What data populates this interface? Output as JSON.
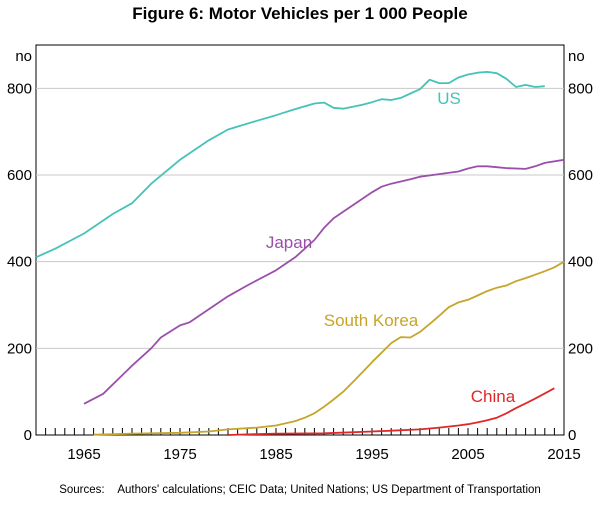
{
  "chart_data": {
    "type": "line",
    "title": "Figure 6: Motor Vehicles per 1 000 People",
    "ylabel_left": "no",
    "ylabel_right": "no",
    "xlim": [
      1960,
      2015
    ],
    "ylim": [
      0,
      900
    ],
    "xticks": [
      1965,
      1975,
      1985,
      1995,
      2005,
      2015
    ],
    "yticks": [
      0,
      200,
      400,
      600,
      800
    ],
    "series": [
      {
        "name": "US",
        "color": "#45c3b8",
        "points": [
          [
            1960,
            410
          ],
          [
            1962,
            430
          ],
          [
            1965,
            465
          ],
          [
            1968,
            510
          ],
          [
            1970,
            535
          ],
          [
            1972,
            580
          ],
          [
            1975,
            635
          ],
          [
            1978,
            680
          ],
          [
            1980,
            705
          ],
          [
            1983,
            725
          ],
          [
            1985,
            738
          ],
          [
            1987,
            752
          ],
          [
            1989,
            765
          ],
          [
            1990,
            767
          ],
          [
            1991,
            755
          ],
          [
            1992,
            753
          ],
          [
            1994,
            762
          ],
          [
            1995,
            768
          ],
          [
            1996,
            775
          ],
          [
            1997,
            773
          ],
          [
            1998,
            778
          ],
          [
            1999,
            788
          ],
          [
            2000,
            798
          ],
          [
            2001,
            820
          ],
          [
            2002,
            812
          ],
          [
            2003,
            812
          ],
          [
            2004,
            825
          ],
          [
            2005,
            832
          ],
          [
            2006,
            836
          ],
          [
            2007,
            838
          ],
          [
            2008,
            835
          ],
          [
            2009,
            822
          ],
          [
            2010,
            803
          ],
          [
            2011,
            808
          ],
          [
            2012,
            803
          ],
          [
            2013,
            805
          ]
        ]
      },
      {
        "name": "Japan",
        "color": "#9b4fab",
        "points": [
          [
            1965,
            72
          ],
          [
            1967,
            95
          ],
          [
            1970,
            160
          ],
          [
            1972,
            200
          ],
          [
            1973,
            225
          ],
          [
            1975,
            253
          ],
          [
            1976,
            260
          ],
          [
            1978,
            290
          ],
          [
            1980,
            320
          ],
          [
            1982,
            345
          ],
          [
            1985,
            380
          ],
          [
            1987,
            410
          ],
          [
            1989,
            450
          ],
          [
            1990,
            478
          ],
          [
            1991,
            500
          ],
          [
            1992,
            515
          ],
          [
            1994,
            545
          ],
          [
            1995,
            560
          ],
          [
            1996,
            573
          ],
          [
            1997,
            580
          ],
          [
            1998,
            585
          ],
          [
            1999,
            590
          ],
          [
            2000,
            596
          ],
          [
            2002,
            602
          ],
          [
            2004,
            608
          ],
          [
            2005,
            615
          ],
          [
            2006,
            620
          ],
          [
            2007,
            620
          ],
          [
            2008,
            618
          ],
          [
            2009,
            616
          ],
          [
            2011,
            614
          ],
          [
            2012,
            620
          ],
          [
            2013,
            628
          ],
          [
            2015,
            635
          ]
        ]
      },
      {
        "name": "South Korea",
        "color": "#c6a529",
        "points": [
          [
            1966,
            1
          ],
          [
            1970,
            3
          ],
          [
            1975,
            5
          ],
          [
            1978,
            8
          ],
          [
            1980,
            13
          ],
          [
            1983,
            17
          ],
          [
            1985,
            22
          ],
          [
            1987,
            32
          ],
          [
            1988,
            40
          ],
          [
            1989,
            50
          ],
          [
            1990,
            65
          ],
          [
            1991,
            82
          ],
          [
            1992,
            100
          ],
          [
            1993,
            122
          ],
          [
            1994,
            145
          ],
          [
            1995,
            168
          ],
          [
            1996,
            190
          ],
          [
            1997,
            212
          ],
          [
            1998,
            226
          ],
          [
            1999,
            225
          ],
          [
            2000,
            238
          ],
          [
            2001,
            256
          ],
          [
            2002,
            275
          ],
          [
            2003,
            295
          ],
          [
            2004,
            306
          ],
          [
            2005,
            312
          ],
          [
            2006,
            322
          ],
          [
            2007,
            332
          ],
          [
            2008,
            340
          ],
          [
            2009,
            345
          ],
          [
            2010,
            355
          ],
          [
            2011,
            362
          ],
          [
            2012,
            370
          ],
          [
            2013,
            378
          ],
          [
            2014,
            387
          ],
          [
            2015,
            400
          ]
        ]
      },
      {
        "name": "China",
        "color": "#e02828",
        "points": [
          [
            1980,
            0
          ],
          [
            1983,
            2
          ],
          [
            1985,
            3
          ],
          [
            1990,
            4
          ],
          [
            1995,
            8
          ],
          [
            1997,
            10
          ],
          [
            2000,
            13
          ],
          [
            2002,
            17
          ],
          [
            2004,
            22
          ],
          [
            2005,
            25
          ],
          [
            2006,
            29
          ],
          [
            2007,
            34
          ],
          [
            2008,
            40
          ],
          [
            2009,
            50
          ],
          [
            2010,
            62
          ],
          [
            2011,
            73
          ],
          [
            2012,
            84
          ],
          [
            2013,
            96
          ],
          [
            2014,
            108
          ]
        ]
      }
    ],
    "annotations": [
      "US",
      "Japan",
      "South Korea",
      "China"
    ],
    "grid": true
  },
  "source": "Sources:    Authors' calculations; CEIC Data; United Nations; US Department of Transportation"
}
